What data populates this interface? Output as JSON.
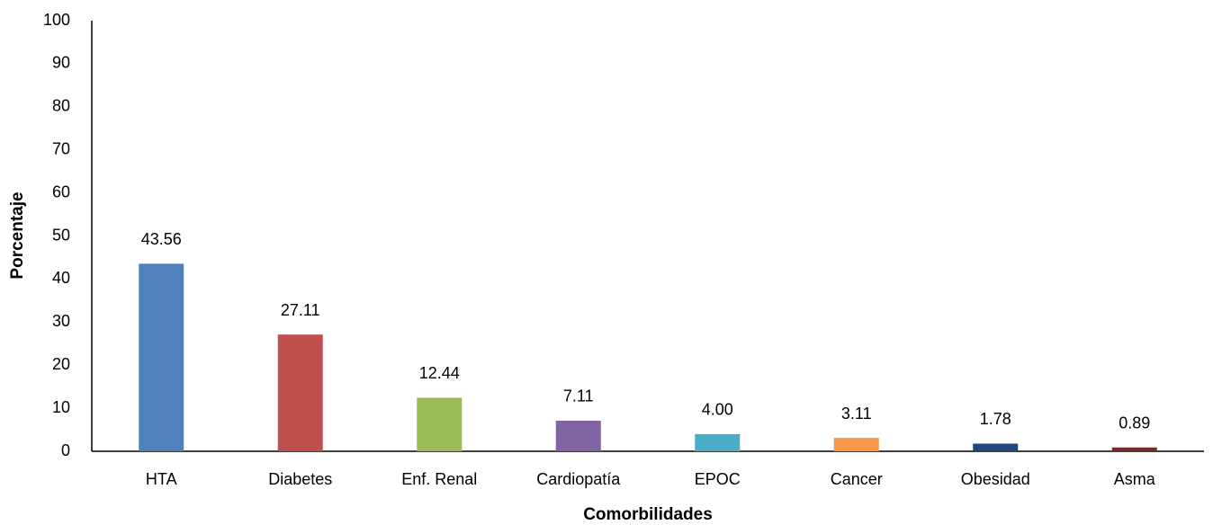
{
  "chart_data": {
    "type": "bar",
    "categories": [
      "HTA",
      "Diabetes",
      "Enf. Renal",
      "Cardiopatía",
      "EPOC",
      "Cancer",
      "Obesidad",
      "Asma"
    ],
    "values": [
      43.56,
      27.11,
      12.44,
      7.11,
      4,
      3.11,
      1.78,
      0.89
    ],
    "value_labels": [
      "43.56",
      "27.11",
      "12.44",
      "7.11",
      "4.00",
      "3.11",
      "1.78",
      "0.89"
    ],
    "colors": [
      "#4f81bd",
      "#c0504d",
      "#9bbb59",
      "#8064a2",
      "#4bacc6",
      "#f79646",
      "#1f497d",
      "#772c2a"
    ],
    "x_label": "Comorbilidades",
    "y_label": "Porcentaje",
    "ylim": [
      0,
      100
    ],
    "yticks": [
      0,
      10,
      20,
      30,
      40,
      50,
      60,
      70,
      80,
      90,
      100
    ],
    "grid": false
  }
}
